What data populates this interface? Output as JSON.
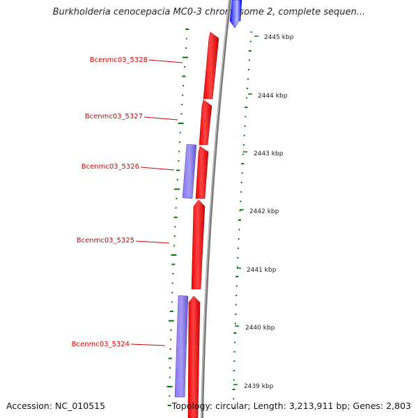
{
  "header": {
    "title": "Burkholderia cenocepacia MC0-3 chromosome 2, complete sequen..."
  },
  "footer": {
    "accession": "Accession: NC_010515",
    "summary": "Topology: circular; Length: 3,213,911 bp; Genes: 2,803"
  },
  "colors": {
    "forward_gene": "#ff0000",
    "reverse_gene": "#7766dd",
    "highlight_gene": "#0000ff",
    "label_red": "#cc0000",
    "gc_ticks": "#007700",
    "backbone": "#888888"
  },
  "scale": {
    "ticks": [
      "2445 kbp",
      "2444 kbp",
      "2443 kbp",
      "2442 kbp",
      "2441 kbp",
      "2440 kbp",
      "2439 kbp"
    ]
  },
  "genes": {
    "labels": [
      "Bcenmc03_5328",
      "Bcenmc03_5327",
      "Bcenmc03_5326",
      "Bcenmc03_5325",
      "Bcenmc03_5324"
    ]
  }
}
